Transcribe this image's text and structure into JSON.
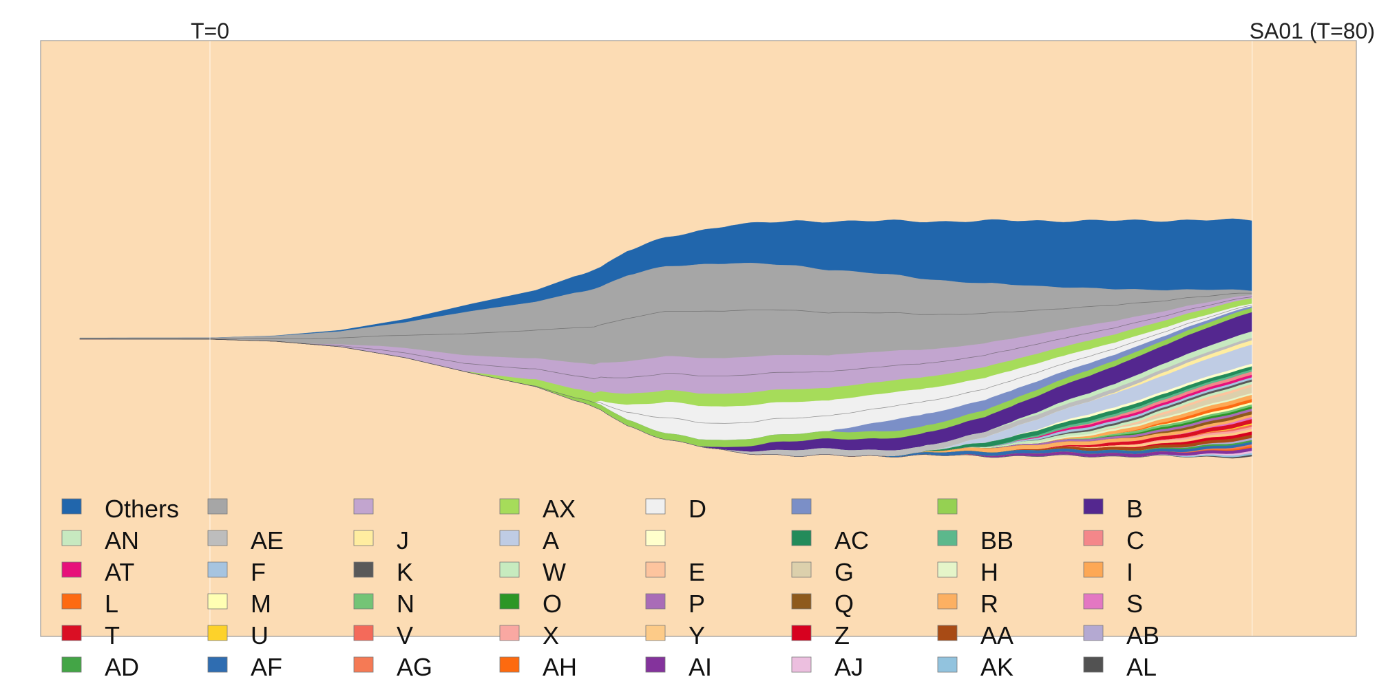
{
  "chart_data": {
    "type": "area",
    "subtype": "fish-plot / stacked stream (centered)",
    "time_markers": [
      {
        "t": 0,
        "label": "T=0"
      },
      {
        "t": 80,
        "label": "SA01 (T=80)"
      }
    ],
    "x_range": [
      -13,
      88
    ],
    "colors": {
      "background": "#fcdcb4",
      "panel_border": "#9a9a9a",
      "marker_line": "#ffffff",
      "seam": "#4a4a4a"
    },
    "total_width": {
      "times": [
        -13,
        -10,
        0,
        5,
        10,
        15,
        20,
        25,
        30,
        32,
        35,
        40,
        45,
        50,
        55,
        60,
        65,
        70,
        75,
        80
      ],
      "values": [
        0.004,
        0.004,
        0.005,
        0.02,
        0.06,
        0.14,
        0.25,
        0.35,
        0.52,
        0.64,
        0.73,
        0.83,
        0.85,
        0.855,
        0.85,
        0.855,
        0.855,
        0.855,
        0.86,
        0.86
      ]
    },
    "layers": [
      {
        "name": "Others",
        "color": "#2166ac",
        "start": -13,
        "v0": 0.0,
        "v1": 0.33
      },
      {
        "name": "",
        "color": "#a6a6a6",
        "start": -13,
        "v0": 1.0,
        "v1": 0.02
      },
      {
        "name": "",
        "color": "#c2a5cf",
        "start": 8,
        "v0": 0.3,
        "v1": 0.015
      },
      {
        "name": "AX",
        "color": "#a6dc5a",
        "start": 20,
        "v0": 0.08,
        "v1": 0.025
      },
      {
        "name": "D",
        "color": "#f0f0f0",
        "start": 30,
        "v0": 0.2,
        "v1": 0.012
      },
      {
        "name": "",
        "color": "#7b8fc7",
        "start": 48,
        "v0": 0.06,
        "v1": 0.008
      },
      {
        "name": "",
        "color": "#95d152",
        "start": 25,
        "v0": 0.04,
        "v1": 0.02
      },
      {
        "name": "B",
        "color": "#54278f",
        "start": 38,
        "v0": 0.03,
        "v1": 0.09
      },
      {
        "name": "AN",
        "color": "#c7e9c0",
        "start": 60,
        "v0": 0.01,
        "v1": 0.03
      },
      {
        "name": "AE",
        "color": "#bdbdbd",
        "start": 40,
        "v0": 0.03,
        "v1": 0.012
      },
      {
        "name": "J",
        "color": "#ffeda0",
        "start": 68,
        "v0": 0.01,
        "v1": 0.02
      },
      {
        "name": "A",
        "color": "#bfcce4",
        "start": 56,
        "v0": 0.02,
        "v1": 0.09
      },
      {
        "name": "",
        "color": "#ffffcc",
        "start": 62,
        "v0": 0.01,
        "v1": 0.012
      },
      {
        "name": "AC",
        "color": "#238b5a",
        "start": 55,
        "v0": 0.02,
        "v1": 0.015
      },
      {
        "name": "BB",
        "color": "#5cb88c",
        "start": 60,
        "v0": 0.01,
        "v1": 0.01
      },
      {
        "name": "C",
        "color": "#f4878a",
        "start": 66,
        "v0": 0.01,
        "v1": 0.015
      },
      {
        "name": "AT",
        "color": "#e7107a",
        "start": 62,
        "v0": 0.01,
        "v1": 0.012
      },
      {
        "name": "F",
        "color": "#a6c4e0",
        "start": 60,
        "v0": 0.01,
        "v1": 0.01
      },
      {
        "name": "K",
        "color": "#595959",
        "start": 63,
        "v0": 0.008,
        "v1": 0.01
      },
      {
        "name": "W",
        "color": "#c7ebbf",
        "start": 58,
        "v0": 0.01,
        "v1": 0.012
      },
      {
        "name": "E",
        "color": "#fdc49e",
        "start": 68,
        "v0": 0.01,
        "v1": 0.012
      },
      {
        "name": "G",
        "color": "#dcd0ac",
        "start": 70,
        "v0": 0.01,
        "v1": 0.03
      },
      {
        "name": "H",
        "color": "#e5f5c9",
        "start": 62,
        "v0": 0.008,
        "v1": 0.008
      },
      {
        "name": "I",
        "color": "#fda855",
        "start": 64,
        "v0": 0.01,
        "v1": 0.02
      },
      {
        "name": "L",
        "color": "#fd6a12",
        "start": 70,
        "v0": 0.01,
        "v1": 0.015
      },
      {
        "name": "M",
        "color": "#ffffb3",
        "start": 72,
        "v0": 0.008,
        "v1": 0.01
      },
      {
        "name": "N",
        "color": "#74c476",
        "start": 66,
        "v0": 0.01,
        "v1": 0.01
      },
      {
        "name": "O",
        "color": "#2c9626",
        "start": 68,
        "v0": 0.008,
        "v1": 0.01
      },
      {
        "name": "P",
        "color": "#a96cb7",
        "start": 60,
        "v0": 0.008,
        "v1": 0.012
      },
      {
        "name": "Q",
        "color": "#8e5a1c",
        "start": 70,
        "v0": 0.008,
        "v1": 0.015
      },
      {
        "name": "R",
        "color": "#fcb062",
        "start": 55,
        "v0": 0.02,
        "v1": 0.012
      },
      {
        "name": "S",
        "color": "#e377c2",
        "start": 74,
        "v0": 0.006,
        "v1": 0.01
      },
      {
        "name": "T",
        "color": "#da0f24",
        "start": 64,
        "v0": 0.01,
        "v1": 0.02
      },
      {
        "name": "U",
        "color": "#fdd22a",
        "start": 76,
        "v0": 0.006,
        "v1": 0.008
      },
      {
        "name": "V",
        "color": "#f46a5a",
        "start": 74,
        "v0": 0.006,
        "v1": 0.01
      },
      {
        "name": "X",
        "color": "#f9a8a2",
        "start": 70,
        "v0": 0.006,
        "v1": 0.01
      },
      {
        "name": "Y",
        "color": "#fdcb88",
        "start": 66,
        "v0": 0.008,
        "v1": 0.012
      },
      {
        "name": "Z",
        "color": "#d7011f",
        "start": 70,
        "v0": 0.008,
        "v1": 0.015
      },
      {
        "name": "AA",
        "color": "#a84b15",
        "start": 62,
        "v0": 0.01,
        "v1": 0.015
      },
      {
        "name": "AB",
        "color": "#b4a9d2",
        "start": 74,
        "v0": 0.006,
        "v1": 0.01
      },
      {
        "name": "AD",
        "color": "#43a546",
        "start": 70,
        "v0": 0.006,
        "v1": 0.008
      },
      {
        "name": "AF",
        "color": "#2f6db1",
        "start": 52,
        "v0": 0.015,
        "v1": 0.012
      },
      {
        "name": "AG",
        "color": "#f57a55",
        "start": 74,
        "v0": 0.006,
        "v1": 0.008
      },
      {
        "name": "AH",
        "color": "#fd6a0f",
        "start": 75,
        "v0": 0.006,
        "v1": 0.008
      },
      {
        "name": "AI",
        "color": "#84339c",
        "start": 58,
        "v0": 0.01,
        "v1": 0.015
      },
      {
        "name": "AJ",
        "color": "#ecbfdf",
        "start": 74,
        "v0": 0.006,
        "v1": 0.01
      },
      {
        "name": "AK",
        "color": "#92c3de",
        "start": 72,
        "v0": 0.006,
        "v1": 0.008
      },
      {
        "name": "AL",
        "color": "#525252",
        "start": 76,
        "v0": 0.006,
        "v1": 0.008
      }
    ]
  }
}
